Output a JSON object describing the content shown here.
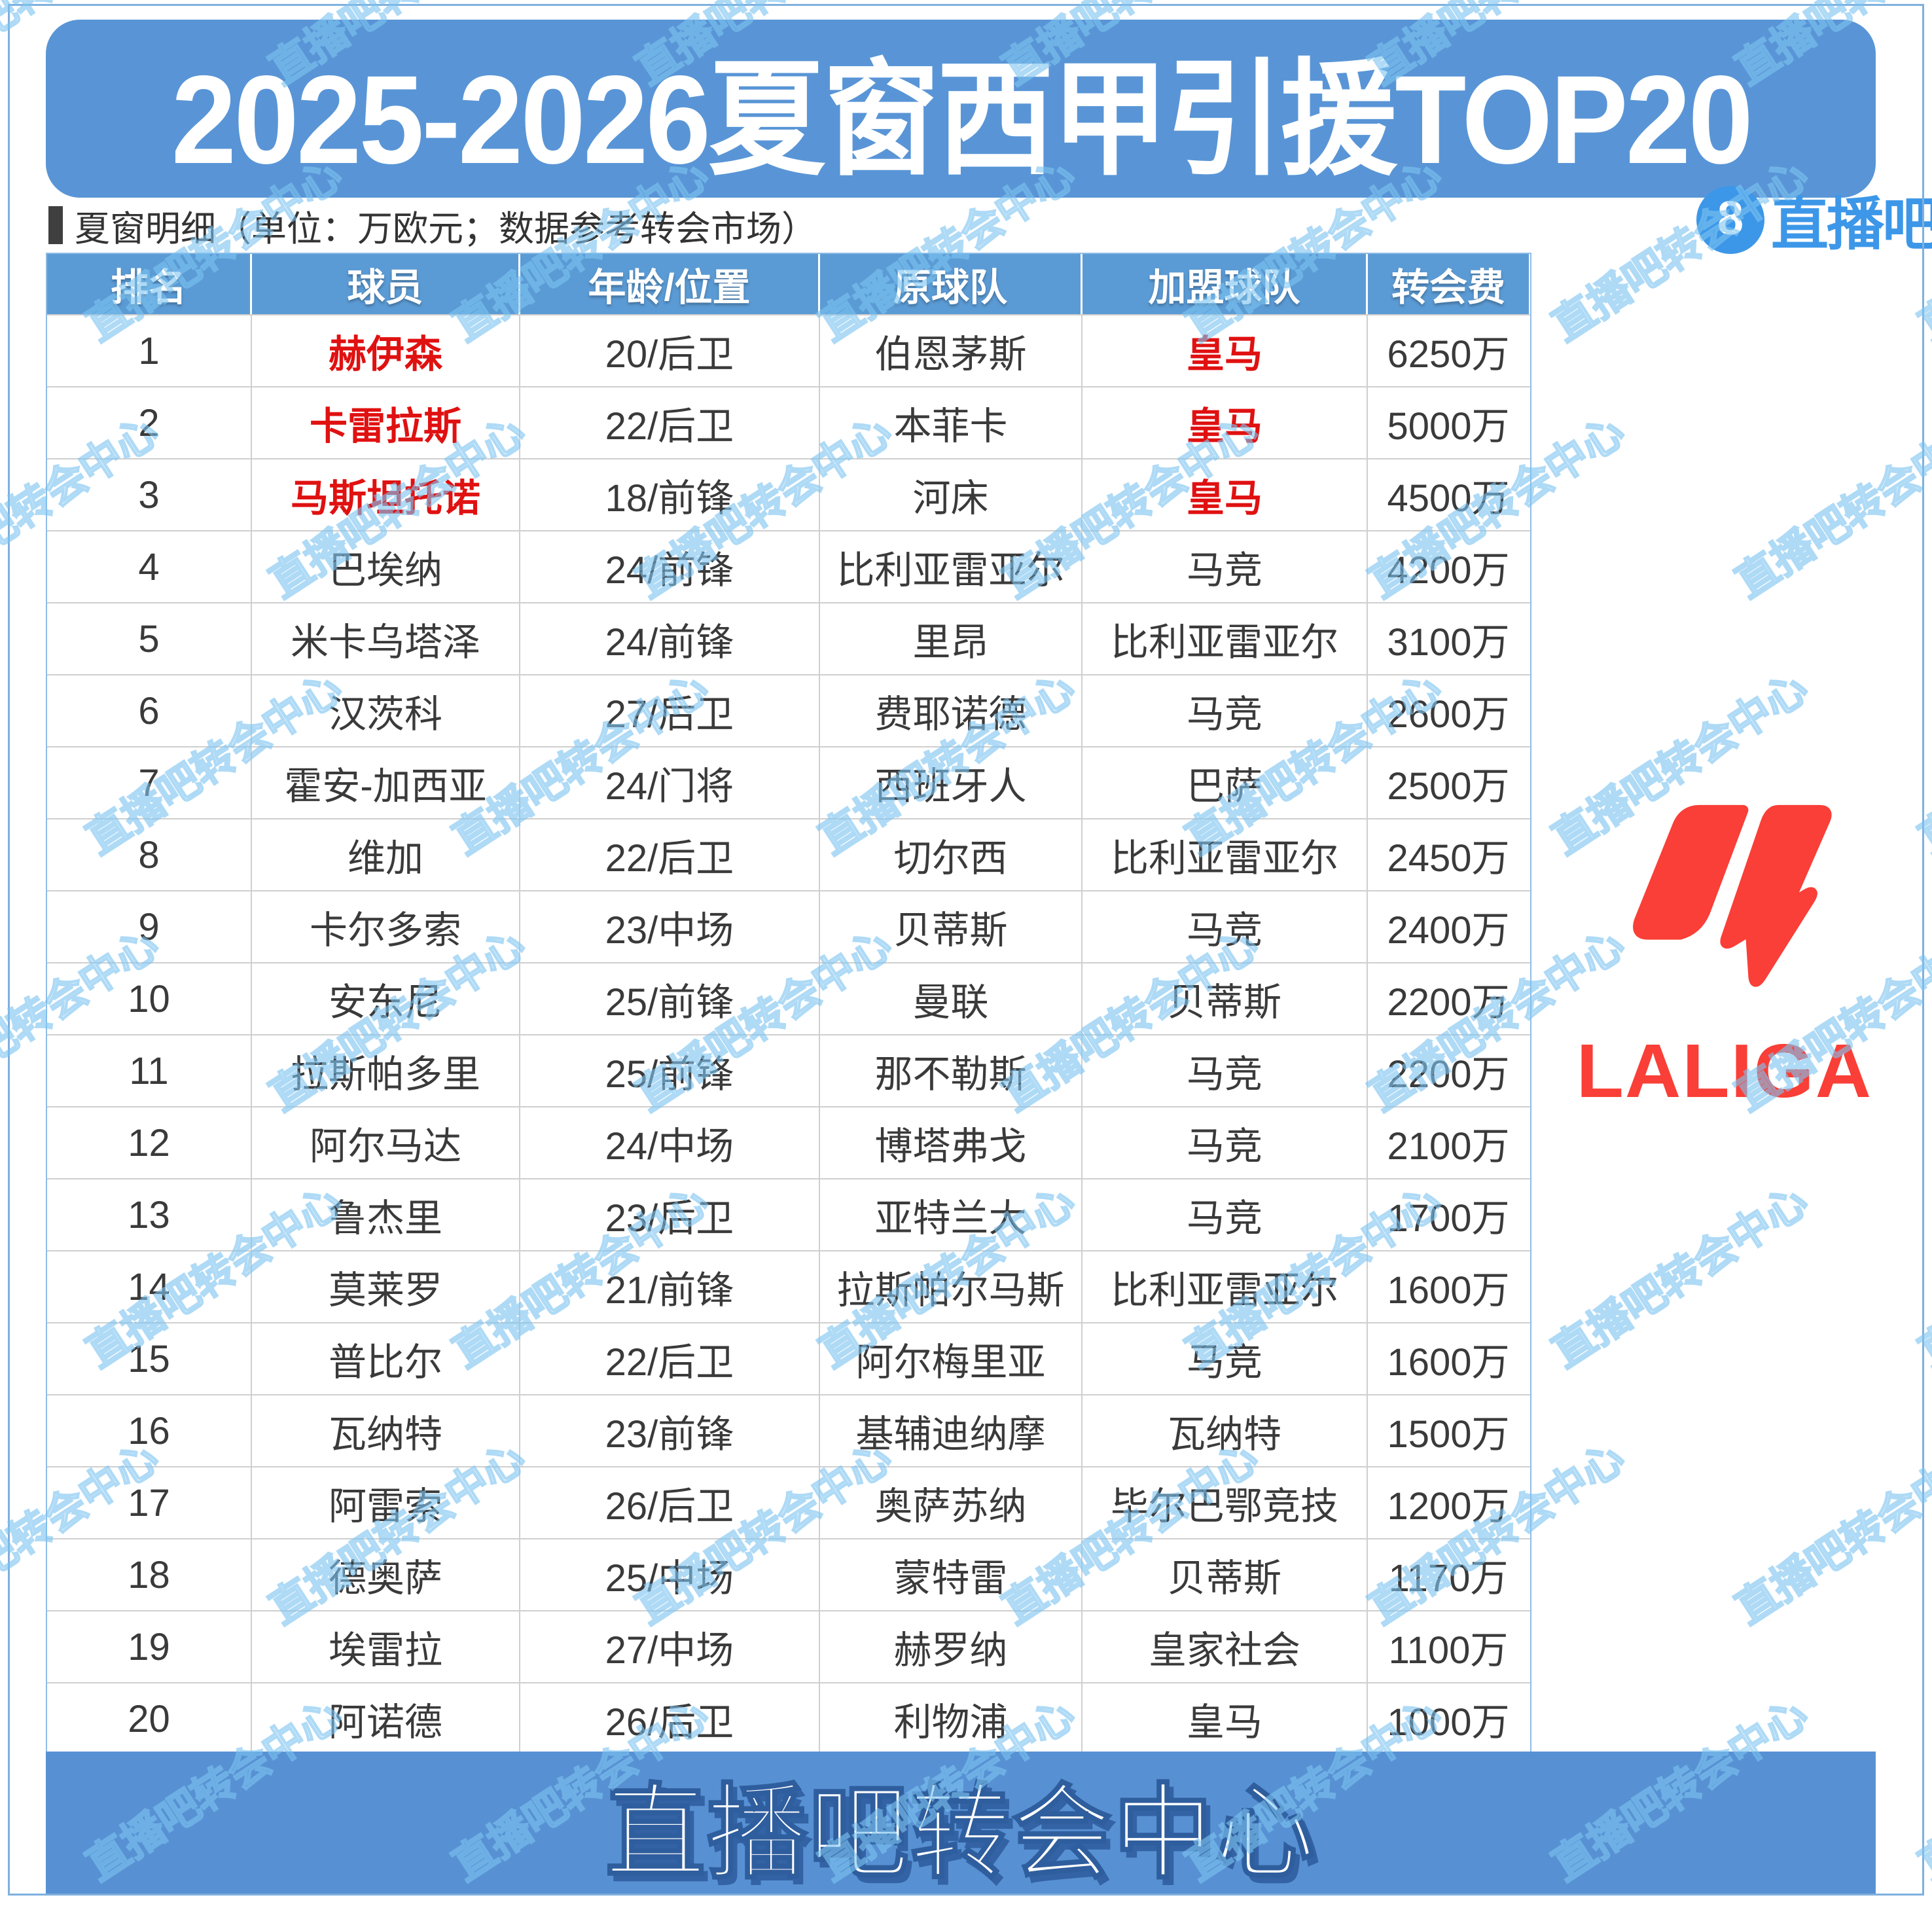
{
  "page": {
    "title": "2025-2026夏窗西甲引援TOP20",
    "subtitle": "夏窗明细（单位：万欧元；数据参考转会市场）",
    "brand": {
      "badge": "8",
      "name": "直播吧"
    },
    "watermark": "直播吧转会中心",
    "footer": "直播吧转会中心",
    "laliga_wordmark": "LALIGA"
  },
  "colors": {
    "banner_blue": "#5995D6",
    "header_blue": "#5B9BD5",
    "footer_blue": "#5791D3",
    "accent_red": "#E01111",
    "laliga_red": "#F93F37",
    "brand_blue": "#3D97E8",
    "text_dark": "#3A3A3A",
    "watermark_blue": "#7CC3F0"
  },
  "table": {
    "headers": [
      "排名",
      "球员",
      "年龄/位置",
      "原球队",
      "加盟球队",
      "转会费"
    ],
    "rows": [
      {
        "rank": "1",
        "player": "赫伊森",
        "age_pos": "20/后卫",
        "from_team": "伯恩茅斯",
        "to_team": "皇马",
        "fee": "6250万",
        "highlight": true
      },
      {
        "rank": "2",
        "player": "卡雷拉斯",
        "age_pos": "22/后卫",
        "from_team": "本菲卡",
        "to_team": "皇马",
        "fee": "5000万",
        "highlight": true
      },
      {
        "rank": "3",
        "player": "马斯坦托诺",
        "age_pos": "18/前锋",
        "from_team": "河床",
        "to_team": "皇马",
        "fee": "4500万",
        "highlight": true
      },
      {
        "rank": "4",
        "player": "巴埃纳",
        "age_pos": "24/前锋",
        "from_team": "比利亚雷亚尔",
        "to_team": "马竞",
        "fee": "4200万",
        "highlight": false
      },
      {
        "rank": "5",
        "player": "米卡乌塔泽",
        "age_pos": "24/前锋",
        "from_team": "里昂",
        "to_team": "比利亚雷亚尔",
        "fee": "3100万",
        "highlight": false
      },
      {
        "rank": "6",
        "player": "汉茨科",
        "age_pos": "27/后卫",
        "from_team": "费耶诺德",
        "to_team": "马竞",
        "fee": "2600万",
        "highlight": false
      },
      {
        "rank": "7",
        "player": "霍安-加西亚",
        "age_pos": "24/门将",
        "from_team": "西班牙人",
        "to_team": "巴萨",
        "fee": "2500万",
        "highlight": false
      },
      {
        "rank": "8",
        "player": "维加",
        "age_pos": "22/后卫",
        "from_team": "切尔西",
        "to_team": "比利亚雷亚尔",
        "fee": "2450万",
        "highlight": false
      },
      {
        "rank": "9",
        "player": "卡尔多索",
        "age_pos": "23/中场",
        "from_team": "贝蒂斯",
        "to_team": "马竞",
        "fee": "2400万",
        "highlight": false
      },
      {
        "rank": "10",
        "player": "安东尼",
        "age_pos": "25/前锋",
        "from_team": "曼联",
        "to_team": "贝蒂斯",
        "fee": "2200万",
        "highlight": false
      },
      {
        "rank": "11",
        "player": "拉斯帕多里",
        "age_pos": "25/前锋",
        "from_team": "那不勒斯",
        "to_team": "马竞",
        "fee": "2200万",
        "highlight": false
      },
      {
        "rank": "12",
        "player": "阿尔马达",
        "age_pos": "24/中场",
        "from_team": "博塔弗戈",
        "to_team": "马竞",
        "fee": "2100万",
        "highlight": false
      },
      {
        "rank": "13",
        "player": "鲁杰里",
        "age_pos": "23/后卫",
        "from_team": "亚特兰大",
        "to_team": "马竞",
        "fee": "1700万",
        "highlight": false
      },
      {
        "rank": "14",
        "player": "莫莱罗",
        "age_pos": "21/前锋",
        "from_team": "拉斯帕尔马斯",
        "to_team": "比利亚雷亚尔",
        "fee": "1600万",
        "highlight": false
      },
      {
        "rank": "15",
        "player": "普比尔",
        "age_pos": "22/后卫",
        "from_team": "阿尔梅里亚",
        "to_team": "马竞",
        "fee": "1600万",
        "highlight": false
      },
      {
        "rank": "16",
        "player": "瓦纳特",
        "age_pos": "23/前锋",
        "from_team": "基辅迪纳摩",
        "to_team": "瓦纳特",
        "fee": "1500万",
        "highlight": false
      },
      {
        "rank": "17",
        "player": "阿雷索",
        "age_pos": "26/后卫",
        "from_team": "奥萨苏纳",
        "to_team": "毕尔巴鄂竞技",
        "fee": "1200万",
        "highlight": false
      },
      {
        "rank": "18",
        "player": "德奥萨",
        "age_pos": "25/中场",
        "from_team": "蒙特雷",
        "to_team": "贝蒂斯",
        "fee": "1170万",
        "highlight": false
      },
      {
        "rank": "19",
        "player": "埃雷拉",
        "age_pos": "27/中场",
        "from_team": "赫罗纳",
        "to_team": "皇家社会",
        "fee": "1100万",
        "highlight": false
      },
      {
        "rank": "20",
        "player": "阿诺德",
        "age_pos": "26/后卫",
        "from_team": "利物浦",
        "to_team": "皇马",
        "fee": "1000万",
        "highlight": false
      }
    ]
  }
}
